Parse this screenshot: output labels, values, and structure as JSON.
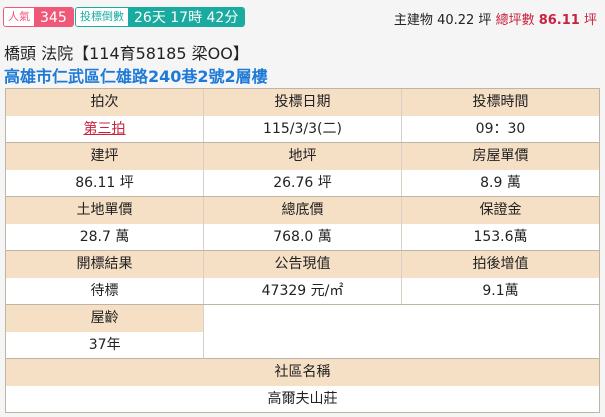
{
  "badges": {
    "popularity_label": "人氣",
    "popularity_value": "345",
    "countdown_label": "投標倒數",
    "countdown_value": "26天 17時 42分"
  },
  "area": {
    "main_label": "主建物",
    "main_value": "40.22 坪",
    "total_label": "總坪數",
    "total_value": "86.11",
    "total_unit": "坪"
  },
  "title": "橋頭 法院【114育58185 梁OO】",
  "address": "高雄市仁武區仁雄路240巷2號2層樓",
  "table": [
    [
      {
        "h": "拍次",
        "v": "第三拍"
      },
      {
        "h": "投標日期",
        "v": "115/3/3(二)"
      },
      {
        "h": "投標時間",
        "v": "09：30"
      }
    ],
    [
      {
        "h": "建坪",
        "v": "86.11 坪"
      },
      {
        "h": "地坪",
        "v": "26.76 坪"
      },
      {
        "h": "房屋單價",
        "v": "8.9 萬"
      }
    ],
    [
      {
        "h": "土地單價",
        "v": "28.7 萬"
      },
      {
        "h": "總底價",
        "v": "768.0 萬"
      },
      {
        "h": "保證金",
        "v": "153.6萬"
      }
    ],
    [
      {
        "h": "開標結果",
        "v": "待標"
      },
      {
        "h": "公告現值",
        "v": "47329 元/㎡"
      },
      {
        "h": "拍後增值",
        "v": "9.1萬"
      }
    ],
    [
      {
        "h": "屋齡",
        "v": "37年"
      }
    ],
    [
      {
        "h": "社區名稱",
        "v": "高爾夫山莊"
      }
    ]
  ],
  "colors": {
    "accent_pink": "#f0587a",
    "accent_teal": "#1aaba0",
    "header_bg": "#f5dfc5",
    "link_red": "#c8233f",
    "address_blue": "#1e7ad6"
  }
}
